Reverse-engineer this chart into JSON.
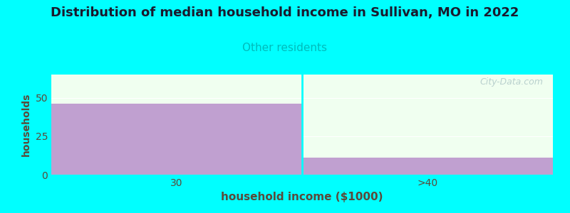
{
  "title": "Distribution of median household income in Sullivan, MO in 2022",
  "subtitle": "Other residents",
  "xlabel": "household income ($1000)",
  "ylabel": "households",
  "background_color": "#00ffff",
  "plot_bg_color": "#f0fff0",
  "bar_color": "#c0a0d0",
  "categories": [
    "30",
    ">40"
  ],
  "values": [
    46,
    11
  ],
  "ylim": [
    0,
    65
  ],
  "yticks": [
    0,
    25,
    50
  ],
  "title_fontsize": 13,
  "subtitle_fontsize": 11,
  "subtitle_color": "#00bbbb",
  "title_color": "#1a1a2e",
  "axis_label_color": "#5a4a3a",
  "tick_color": "#5a4a3a",
  "watermark": "City-Data.com",
  "watermark_color": "#b0c8c8"
}
